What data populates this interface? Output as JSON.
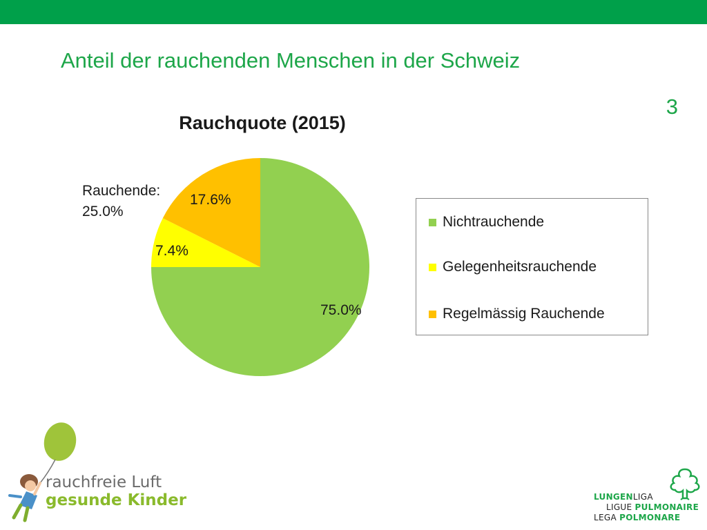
{
  "slide": {
    "title": "Anteil der rauchenden Menschen in der Schweiz",
    "number": "3"
  },
  "chart_data": {
    "type": "pie",
    "title": "Rauchquote (2015)",
    "categories": [
      "Nichtrauchende",
      "Gelegenheitsrauchende",
      "Regelmässig Rauchende"
    ],
    "values": [
      75.0,
      7.4,
      17.6
    ],
    "data_labels": [
      "75.0%",
      "7.4%",
      "17.6%"
    ],
    "colors": [
      "#92d050",
      "#ffff00",
      "#ffc000"
    ],
    "callout": {
      "line1": "Rauchende:",
      "line2": "25.0%"
    },
    "legend_position": "right"
  },
  "branding": {
    "left_line1": "rauchfreie Luft",
    "left_line2": "gesunde Kinder",
    "right_lines": [
      {
        "bold": "LUNGEN",
        "rest": "LIGA",
        "bold_first": true
      },
      {
        "bold": "PULMONAIRE",
        "rest": "LIGUE ",
        "bold_first": false
      },
      {
        "bold": "POLMONARE",
        "rest": "LEGA ",
        "bold_first": false
      }
    ],
    "colors": {
      "green": "#1da649",
      "lime": "#8aba2c",
      "balloon": "#9fc43a"
    }
  }
}
